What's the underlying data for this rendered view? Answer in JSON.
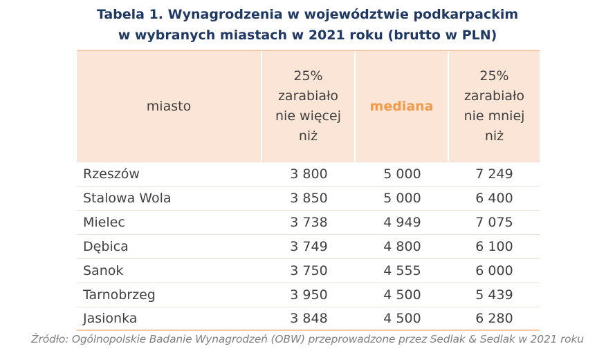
{
  "title": {
    "line1": "Tabela 1. Wynagrodzenia w województwie podkarpackim",
    "line2": "w wybranych miastach w 2021 roku (brutto w PLN)"
  },
  "table": {
    "headers": [
      {
        "lines": [
          "miasto"
        ]
      },
      {
        "lines": [
          "25%",
          "zarabiało",
          "nie więcej",
          "niż"
        ]
      },
      {
        "lines": [
          "mediana"
        ]
      },
      {
        "lines": [
          "25%",
          "zarabiało",
          "nie mniej",
          "niż"
        ]
      }
    ],
    "rows": [
      [
        "Rzeszów",
        "3 800",
        "5 000",
        "7 249"
      ],
      [
        "Stalowa Wola",
        "3 850",
        "5 000",
        "6 400"
      ],
      [
        "Mielec",
        "3 738",
        "4 949",
        "7 075"
      ],
      [
        "Dębica",
        "3 749",
        "4 800",
        "6 100"
      ],
      [
        "Sanok",
        "3 750",
        "4 555",
        "6 000"
      ],
      [
        "Tarnobrzeg",
        "3 950",
        "4 500",
        "5 439"
      ],
      [
        "Jasionka",
        "3 848",
        "4 500",
        "6 280"
      ]
    ]
  },
  "source": "Źródło: Ogólnopolskie Badanie Wynagrodzeń (OBW) przeprowadzone przez Sedlak & Sedlak w 2021 roku",
  "colors": {
    "title": "#1f3864",
    "header_bg": "#fbe5d6",
    "median_accent": "#f19a4a",
    "text": "#404040",
    "source": "#808080"
  }
}
